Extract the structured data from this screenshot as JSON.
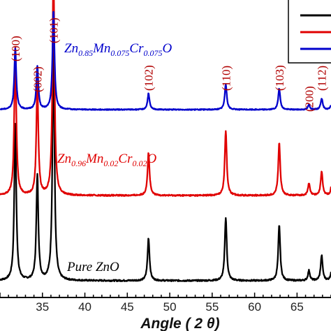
{
  "chart_data": {
    "type": "line",
    "title": "",
    "xlabel": "Angle ( 2 θ)",
    "xlim": [
      30,
      69
    ],
    "x_ticks": [
      35,
      40,
      45,
      50,
      55,
      60,
      65
    ],
    "grid": false,
    "legend": "top-right",
    "series": [
      {
        "name": "Pure ZnO",
        "color": "#000000",
        "label_parts": [
          {
            "t": "Pure ZnO",
            "sub": false
          }
        ],
        "peaks": [
          {
            "x": 31.8,
            "height": 0.62
          },
          {
            "x": 34.4,
            "height": 0.42
          },
          {
            "x": 36.3,
            "height": 0.95
          },
          {
            "x": 47.5,
            "height": 0.17
          },
          {
            "x": 56.6,
            "height": 0.25
          },
          {
            "x": 62.9,
            "height": 0.22
          },
          {
            "x": 66.4,
            "height": 0.04
          },
          {
            "x": 67.9,
            "height": 0.1
          },
          {
            "x": 69.1,
            "height": 0.05
          }
        ]
      },
      {
        "name": "Zn0.96Mn0.02Cr0.02O",
        "color": "#e00000",
        "label_parts": [
          {
            "t": "Zn",
            "sub": false
          },
          {
            "t": "0.96",
            "sub": true
          },
          {
            "t": "Mn",
            "sub": false
          },
          {
            "t": "0.02",
            "sub": true
          },
          {
            "t": "Cr",
            "sub": false
          },
          {
            "t": "0.02",
            "sub": true
          },
          {
            "t": "O",
            "sub": false
          }
        ],
        "peaks": [
          {
            "x": 31.8,
            "height": 0.62
          },
          {
            "x": 34.4,
            "height": 0.47
          },
          {
            "x": 36.3,
            "height": 0.95
          },
          {
            "x": 47.5,
            "height": 0.18
          },
          {
            "x": 56.6,
            "height": 0.27
          },
          {
            "x": 62.9,
            "height": 0.22
          },
          {
            "x": 66.4,
            "height": 0.05
          },
          {
            "x": 67.9,
            "height": 0.1
          },
          {
            "x": 69.1,
            "height": 0.05
          }
        ]
      },
      {
        "name": "Zn0.85Mn0.075Cr0.075O",
        "color": "#0000cc",
        "label_parts": [
          {
            "t": "Zn",
            "sub": false
          },
          {
            "t": "0.85",
            "sub": true
          },
          {
            "t": "Mn",
            "sub": false
          },
          {
            "t": "0.075",
            "sub": true
          },
          {
            "t": "Cr",
            "sub": false
          },
          {
            "t": "0.075",
            "sub": true
          },
          {
            "t": "O",
            "sub": false
          }
        ],
        "peaks": [
          {
            "x": 31.8,
            "height": 0.38
          },
          {
            "x": 34.4,
            "height": 0.27
          },
          {
            "x": 36.3,
            "height": 0.62
          },
          {
            "x": 47.5,
            "height": 0.1
          },
          {
            "x": 56.6,
            "height": 0.16
          },
          {
            "x": 62.9,
            "height": 0.13
          },
          {
            "x": 66.4,
            "height": 0.03
          },
          {
            "x": 67.9,
            "height": 0.07
          },
          {
            "x": 69.1,
            "height": 0.04
          }
        ]
      }
    ],
    "peak_labels": [
      {
        "text": "(100)",
        "x": 31.8
      },
      {
        "text": "(002)",
        "x": 34.4
      },
      {
        "text": "(101)",
        "x": 36.3
      },
      {
        "text": "(102)",
        "x": 47.5
      },
      {
        "text": "(110)",
        "x": 56.6
      },
      {
        "text": "(103)",
        "x": 62.9
      },
      {
        "text": "(200)",
        "x": 66.4
      },
      {
        "text": "(112)",
        "x": 67.9
      }
    ]
  }
}
